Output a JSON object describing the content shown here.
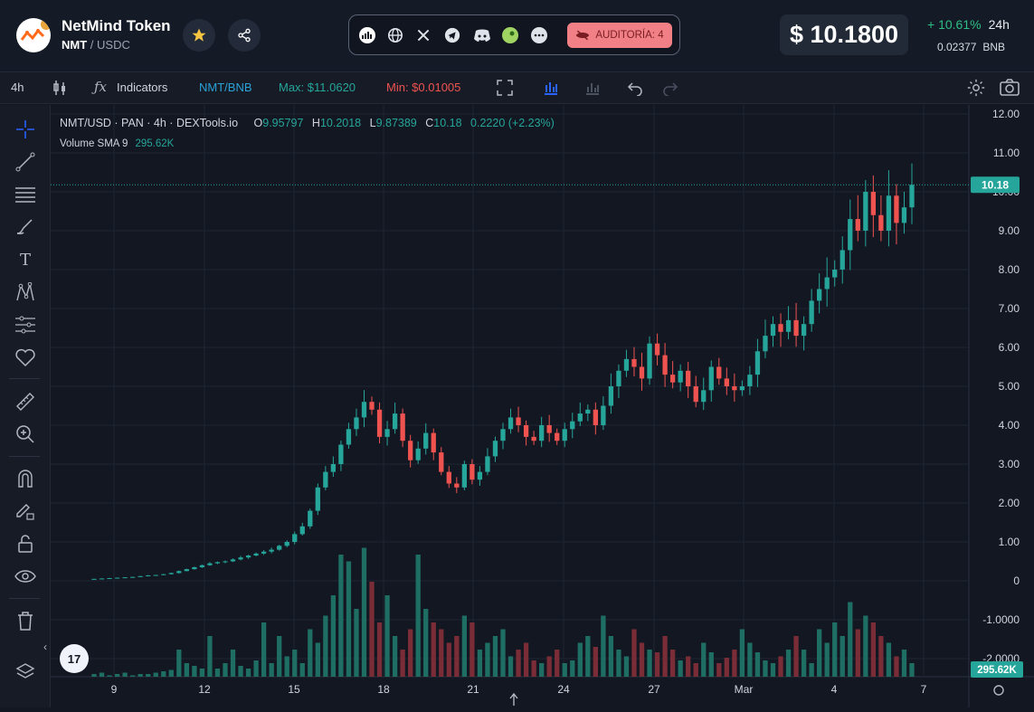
{
  "header": {
    "token_name": "NetMind Token",
    "symbol": "NMT",
    "separator": " / ",
    "quote": "USDC",
    "audit_label": "AUDITORÍA: 4",
    "price": "$ 10.1800",
    "change_pct": "+ 10.61%",
    "change_period": "24h",
    "bnb_value": "0.02377",
    "bnb_label": "BNB",
    "social_icons": [
      "chart-logo-icon",
      "globe-icon",
      "x-icon",
      "telegram-icon",
      "discord-icon",
      "coin-icon",
      "more-icon"
    ],
    "colors": {
      "up": "#26a69a",
      "down": "#ef5350",
      "accent": "#2962ff",
      "audit": "#f07f86"
    }
  },
  "toolbar": {
    "interval": "4h",
    "indicators": "Indicators",
    "pair": "NMT/BNB",
    "max": "Max: $11.0620",
    "min": "Min: $0.01005"
  },
  "legend": {
    "title": "NMT/USD · PAN · 4h · DEXTools.io",
    "o_label": "O",
    "o": "9.95797",
    "h_label": "H",
    "h": "10.2018",
    "l_label": "L",
    "l": "9.87389",
    "c_label": "C",
    "c": "10.18",
    "change": "0.2220 (+2.23%)",
    "volume_label": "Volume SMA 9",
    "volume_value": "295.62K"
  },
  "chart_data": {
    "type": "candlestick",
    "y_ticks": [
      "12.00",
      "11.00",
      "10.00",
      "9.00",
      "8.00",
      "7.00",
      "6.00",
      "5.00",
      "4.00",
      "3.00",
      "2.00",
      "1.00",
      "0",
      "-1.0000",
      "-2.0000"
    ],
    "x_ticks": [
      "9",
      "12",
      "15",
      "18",
      "21",
      "24",
      "27",
      "Mar",
      "4",
      "7"
    ],
    "current_price_label": "10.18",
    "volume_label": "295.62K",
    "close_series": [
      0.05,
      0.06,
      0.07,
      0.08,
      0.09,
      0.1,
      0.12,
      0.14,
      0.15,
      0.17,
      0.2,
      0.25,
      0.3,
      0.35,
      0.4,
      0.45,
      0.48,
      0.5,
      0.55,
      0.6,
      0.65,
      0.7,
      0.75,
      0.8,
      0.9,
      1.0,
      1.2,
      1.4,
      1.8,
      2.4,
      2.8,
      3.0,
      3.5,
      3.9,
      4.2,
      4.6,
      4.4,
      3.7,
      3.9,
      4.3,
      3.6,
      3.1,
      3.4,
      3.8,
      3.3,
      2.8,
      2.5,
      2.4,
      3.0,
      2.6,
      2.8,
      3.2,
      3.6,
      3.9,
      4.2,
      4.0,
      3.7,
      3.6,
      4.0,
      3.8,
      3.6,
      3.9,
      4.1,
      4.3,
      4.4,
      4.0,
      4.5,
      5.0,
      5.4,
      5.7,
      5.5,
      5.2,
      6.1,
      5.8,
      5.3,
      5.1,
      5.4,
      5.0,
      4.6,
      4.9,
      5.5,
      5.2,
      5.0,
      4.9,
      5.0,
      5.3,
      5.9,
      6.3,
      6.6,
      6.4,
      6.7,
      6.3,
      6.6,
      7.2,
      7.5,
      7.8,
      8.0,
      8.5,
      9.3,
      9.0,
      10.0,
      9.4,
      9.0,
      9.9,
      9.2,
      9.6,
      10.18
    ],
    "volume_series": [
      0.02,
      0.03,
      0.01,
      0.02,
      0.03,
      0.01,
      0.02,
      0.02,
      0.03,
      0.04,
      0.05,
      0.2,
      0.1,
      0.08,
      0.06,
      0.3,
      0.06,
      0.1,
      0.2,
      0.08,
      0.06,
      0.12,
      0.4,
      0.1,
      0.3,
      0.15,
      0.2,
      0.1,
      0.35,
      0.25,
      0.45,
      0.6,
      0.9,
      0.85,
      0.5,
      0.95,
      0.7,
      0.4,
      0.6,
      0.3,
      0.2,
      0.35,
      0.9,
      0.5,
      0.4,
      0.35,
      0.25,
      0.3,
      0.45,
      0.4,
      0.2,
      0.25,
      0.3,
      0.35,
      0.15,
      0.2,
      0.25,
      0.12,
      0.1,
      0.15,
      0.2,
      0.1,
      0.12,
      0.25,
      0.3,
      0.22,
      0.45,
      0.3,
      0.2,
      0.15,
      0.35,
      0.25,
      0.2,
      0.18,
      0.3,
      0.2,
      0.12,
      0.15,
      0.1,
      0.25,
      0.18,
      0.1,
      0.14,
      0.2,
      0.35,
      0.25,
      0.18,
      0.12,
      0.1,
      0.15,
      0.2,
      0.3,
      0.2,
      0.1,
      0.35,
      0.25,
      0.4,
      0.3,
      0.55,
      0.35,
      0.45,
      0.4,
      0.3,
      0.25,
      0.15,
      0.2,
      0.1
    ]
  },
  "icons": {
    "left_tools": [
      "crosshair-icon",
      "trendline-icon",
      "horizontal-lines-icon",
      "brush-icon",
      "text-icon",
      "pattern-icon",
      "measure-icon",
      "heart-icon",
      "ruler-icon",
      "zoom-icon",
      "magnet-icon",
      "lock-draw-icon",
      "lock-icon",
      "eye-icon",
      "trash-icon",
      "layers-icon"
    ]
  }
}
